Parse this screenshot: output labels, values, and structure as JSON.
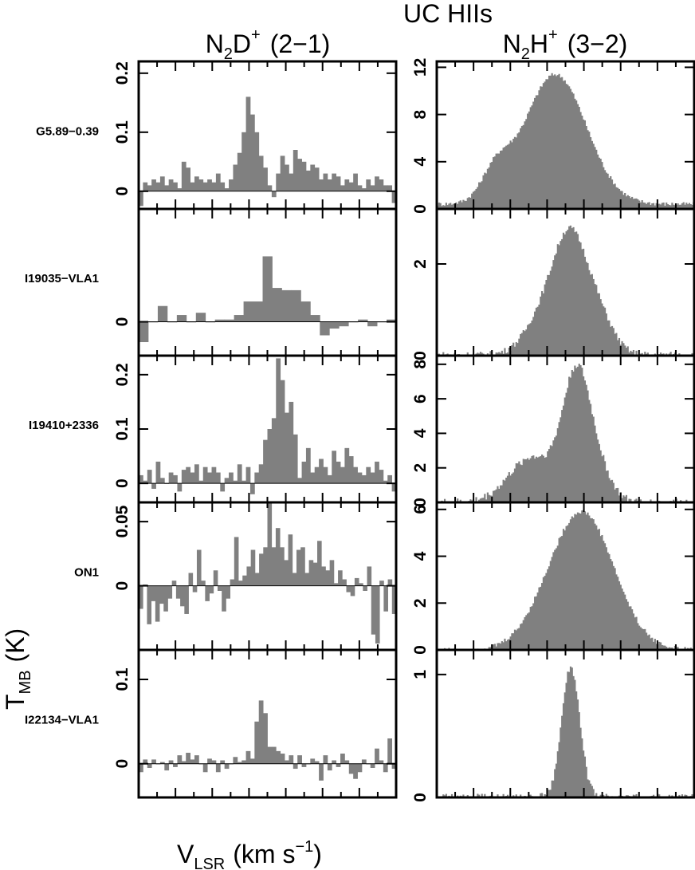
{
  "figure": {
    "title": "UC HIIs",
    "xlabel_main": "V",
    "xlabel_sub": "LSR",
    "xlabel_unit": "(km s",
    "xlabel_exp": "−1",
    "xlabel_close": ")",
    "ylabel_main": "T",
    "ylabel_sub": "MB",
    "ylabel_unit": "(K)"
  },
  "columns": [
    {
      "mol_a": "N",
      "sub_a": "2",
      "mol_b": "D",
      "sup": "+",
      "transition": "(2−1)"
    },
    {
      "mol_a": "N",
      "sub_a": "2",
      "mol_b": "H",
      "sup": "+",
      "transition": "(3−2)"
    }
  ],
  "chart_data": [
    {
      "type": "bar",
      "source": "G5.89−0.39",
      "line": "N2D+ (2−1)",
      "ylim": [
        -0.03,
        0.22
      ],
      "yticks": [
        0,
        0.1,
        0.2
      ],
      "ytick_labels": [
        "0",
        "0.1",
        "0.2"
      ],
      "values": [
        -0.025,
        0.015,
        0.01,
        0.02,
        0.015,
        0.025,
        0.01,
        0.02,
        0.015,
        0.005,
        0.05,
        0.04,
        0.015,
        0.025,
        0.02,
        0.015,
        0.02,
        0.015,
        0.03,
        0.015,
        0.005,
        0.02,
        0.045,
        0.065,
        0.1,
        0.16,
        0.13,
        0.1,
        0.06,
        0.04,
        0.01,
        -0.01,
        0.03,
        0.06,
        0.045,
        0.03,
        0.07,
        0.055,
        0.05,
        0.035,
        0.045,
        0.04,
        0.02,
        0.03,
        0.02,
        0.03,
        0.025,
        0.01,
        0.02,
        0.015,
        0.03,
        0.01,
        0.005,
        0.02,
        0.01,
        0.025,
        0.02,
        0.01,
        0.01,
        -0.02
      ]
    },
    {
      "type": "area",
      "source": "G5.89−0.39",
      "line": "N2H+ (3−2)",
      "ylim": [
        0,
        12.5
      ],
      "yticks": [
        0,
        4,
        8,
        12
      ],
      "ytick_labels": [
        "0",
        "4",
        "8",
        "12"
      ],
      "profile": [
        {
          "center": 0.23,
          "width": 0.055,
          "amp": 2.4
        },
        {
          "center": 0.46,
          "width": 0.12,
          "amp": 11.0
        }
      ],
      "baseline": 0.4,
      "noise": 0.18
    },
    {
      "type": "bar",
      "source": "I19035−VLA1",
      "line": "N2D+ (2−1)",
      "ylim": [
        -0.15,
        0.5
      ],
      "yticks": [
        0
      ],
      "ytick_labels": [
        "0"
      ],
      "values": [
        -0.09,
        0.0,
        0.07,
        0.0,
        0.03,
        0.0,
        0.04,
        0.0,
        0.01,
        0.01,
        0.03,
        0.09,
        0.09,
        0.29,
        0.15,
        0.14,
        0.14,
        0.09,
        0.03,
        -0.06,
        -0.03,
        -0.02,
        0.0,
        0.01,
        -0.02,
        0.0,
        0.01
      ]
    },
    {
      "type": "area",
      "source": "I19035−VLA1",
      "line": "N2H+ (3−2)",
      "ylim": [
        0,
        3.2
      ],
      "yticks": [
        0,
        2
      ],
      "ytick_labels": [
        "0",
        "2"
      ],
      "profile": [
        {
          "center": 0.43,
          "width": 0.075,
          "amp": 1.0
        },
        {
          "center": 0.52,
          "width": 0.06,
          "amp": 2.05
        },
        {
          "center": 0.62,
          "width": 0.06,
          "amp": 0.9
        }
      ],
      "baseline": 0.02,
      "noise": 0.07
    },
    {
      "type": "bar",
      "source": "I19410+2336",
      "line": "N2D+ (2−1)",
      "ylim": [
        -0.035,
        0.235
      ],
      "yticks": [
        0,
        0.1,
        0.2
      ],
      "ytick_labels": [
        "0",
        "0.1",
        "0.2"
      ],
      "values": [
        0.015,
        0.005,
        0.025,
        -0.01,
        0.04,
        0.01,
        0.0,
        0.02,
        0.015,
        -0.015,
        0.025,
        0.03,
        0.02,
        0.035,
        0.005,
        0.03,
        0.02,
        0.03,
        0.02,
        -0.015,
        0.01,
        0.02,
        0.005,
        0.035,
        0.005,
        0.03,
        -0.02,
        0.02,
        0.035,
        0.08,
        0.1,
        0.12,
        0.23,
        0.19,
        0.13,
        0.15,
        0.09,
        0.01,
        0.04,
        0.065,
        0.02,
        0.03,
        0.045,
        0.03,
        0.015,
        0.06,
        0.04,
        0.03,
        0.065,
        0.05,
        0.03,
        0.02,
        0.015,
        0.03,
        0.02,
        0.04,
        0.025,
        0.005,
        0.015,
        -0.015
      ]
    },
    {
      "type": "area",
      "source": "I19410+2336",
      "line": "N2H+ (3−2)",
      "ylim": [
        0,
        8.5
      ],
      "yticks": [
        0,
        2,
        4,
        6,
        8
      ],
      "ytick_labels": [
        "0",
        "2",
        "4",
        "6",
        "8"
      ],
      "profile": [
        {
          "center": 0.37,
          "width": 0.09,
          "amp": 2.6
        },
        {
          "center": 0.545,
          "width": 0.055,
          "amp": 7.4
        },
        {
          "center": 0.64,
          "width": 0.05,
          "amp": 1.2
        }
      ],
      "baseline": 0.0,
      "noise": 0.22
    },
    {
      "type": "bar",
      "source": "ON1",
      "line": "N2D+ (2−1)",
      "ylim": [
        -0.05,
        0.065
      ],
      "yticks": [
        0,
        0.05
      ],
      "ytick_labels": [
        "0",
        "0.05"
      ],
      "values": [
        -0.018,
        0.001,
        -0.03,
        -0.012,
        -0.028,
        -0.014,
        -0.02,
        -0.01,
        0.004,
        -0.01,
        -0.016,
        -0.022,
        0.01,
        -0.005,
        0.028,
        0.004,
        -0.012,
        -0.006,
        0.012,
        -0.004,
        -0.02,
        -0.01,
        0.005,
        0.038,
        0.004,
        0.008,
        0.015,
        0.028,
        0.01,
        0.025,
        0.03,
        0.065,
        0.03,
        0.045,
        0.03,
        0.02,
        0.04,
        0.01,
        0.028,
        0.03,
        0.01,
        0.02,
        0.018,
        0.035,
        0.015,
        0.012,
        0.02,
        0.002,
        0.012,
        0.005,
        -0.005,
        -0.008,
        0.006,
        0.002,
        -0.004,
        0.015,
        -0.038,
        -0.045,
        0.004,
        -0.02,
        0.005,
        -0.022
      ]
    },
    {
      "type": "area",
      "source": "ON1",
      "line": "N2H+ (3−2)",
      "ylim": [
        0,
        6.3
      ],
      "yticks": [
        0,
        2,
        4,
        6
      ],
      "ytick_labels": [
        "0",
        "2",
        "4",
        "6"
      ],
      "profile": [
        {
          "center": 0.57,
          "width": 0.12,
          "amp": 5.7
        },
        {
          "center": 0.42,
          "width": 0.1,
          "amp": 0.6
        }
      ],
      "baseline": 0.0,
      "noise": 0.1
    },
    {
      "type": "bar",
      "source": "I22134−VLA1",
      "line": "N2D+ (2−1)",
      "ylim": [
        -0.04,
        0.135
      ],
      "yticks": [
        0,
        0.1
      ],
      "ytick_labels": [
        "0",
        "0.1"
      ],
      "values": [
        -0.01,
        0.005,
        -0.005,
        0.005,
        0.0,
        0.002,
        -0.008,
        0.004,
        -0.004,
        0.01,
        0.003,
        0.013,
        0.005,
        0.01,
        0.0,
        -0.01,
        0.006,
        0.004,
        -0.01,
        0.004,
        -0.006,
        0.0,
        0.008,
        0.002,
        0.004,
        0.015,
        0.006,
        0.05,
        0.075,
        0.06,
        0.02,
        0.02,
        0.015,
        0.012,
        0.004,
        0.01,
        -0.006,
        0.01,
        -0.004,
        0.0,
        0.006,
        0.003,
        -0.02,
        0.01,
        -0.008,
        0.004,
        -0.004,
        0.012,
        0.004,
        -0.012,
        -0.018,
        -0.01,
        0.005,
        0.0,
        -0.005,
        0.018,
        0.004,
        -0.01,
        0.03,
        -0.006
      ]
    },
    {
      "type": "area",
      "source": "I22134−VLA1",
      "line": "N2H+ (3−2)",
      "ylim": [
        0,
        1.2
      ],
      "yticks": [
        0,
        1
      ],
      "ytick_labels": [
        "0",
        "1"
      ],
      "profile": [
        {
          "center": 0.52,
          "width": 0.035,
          "amp": 1.05
        }
      ],
      "baseline": 0.0,
      "noise": 0.03
    }
  ]
}
